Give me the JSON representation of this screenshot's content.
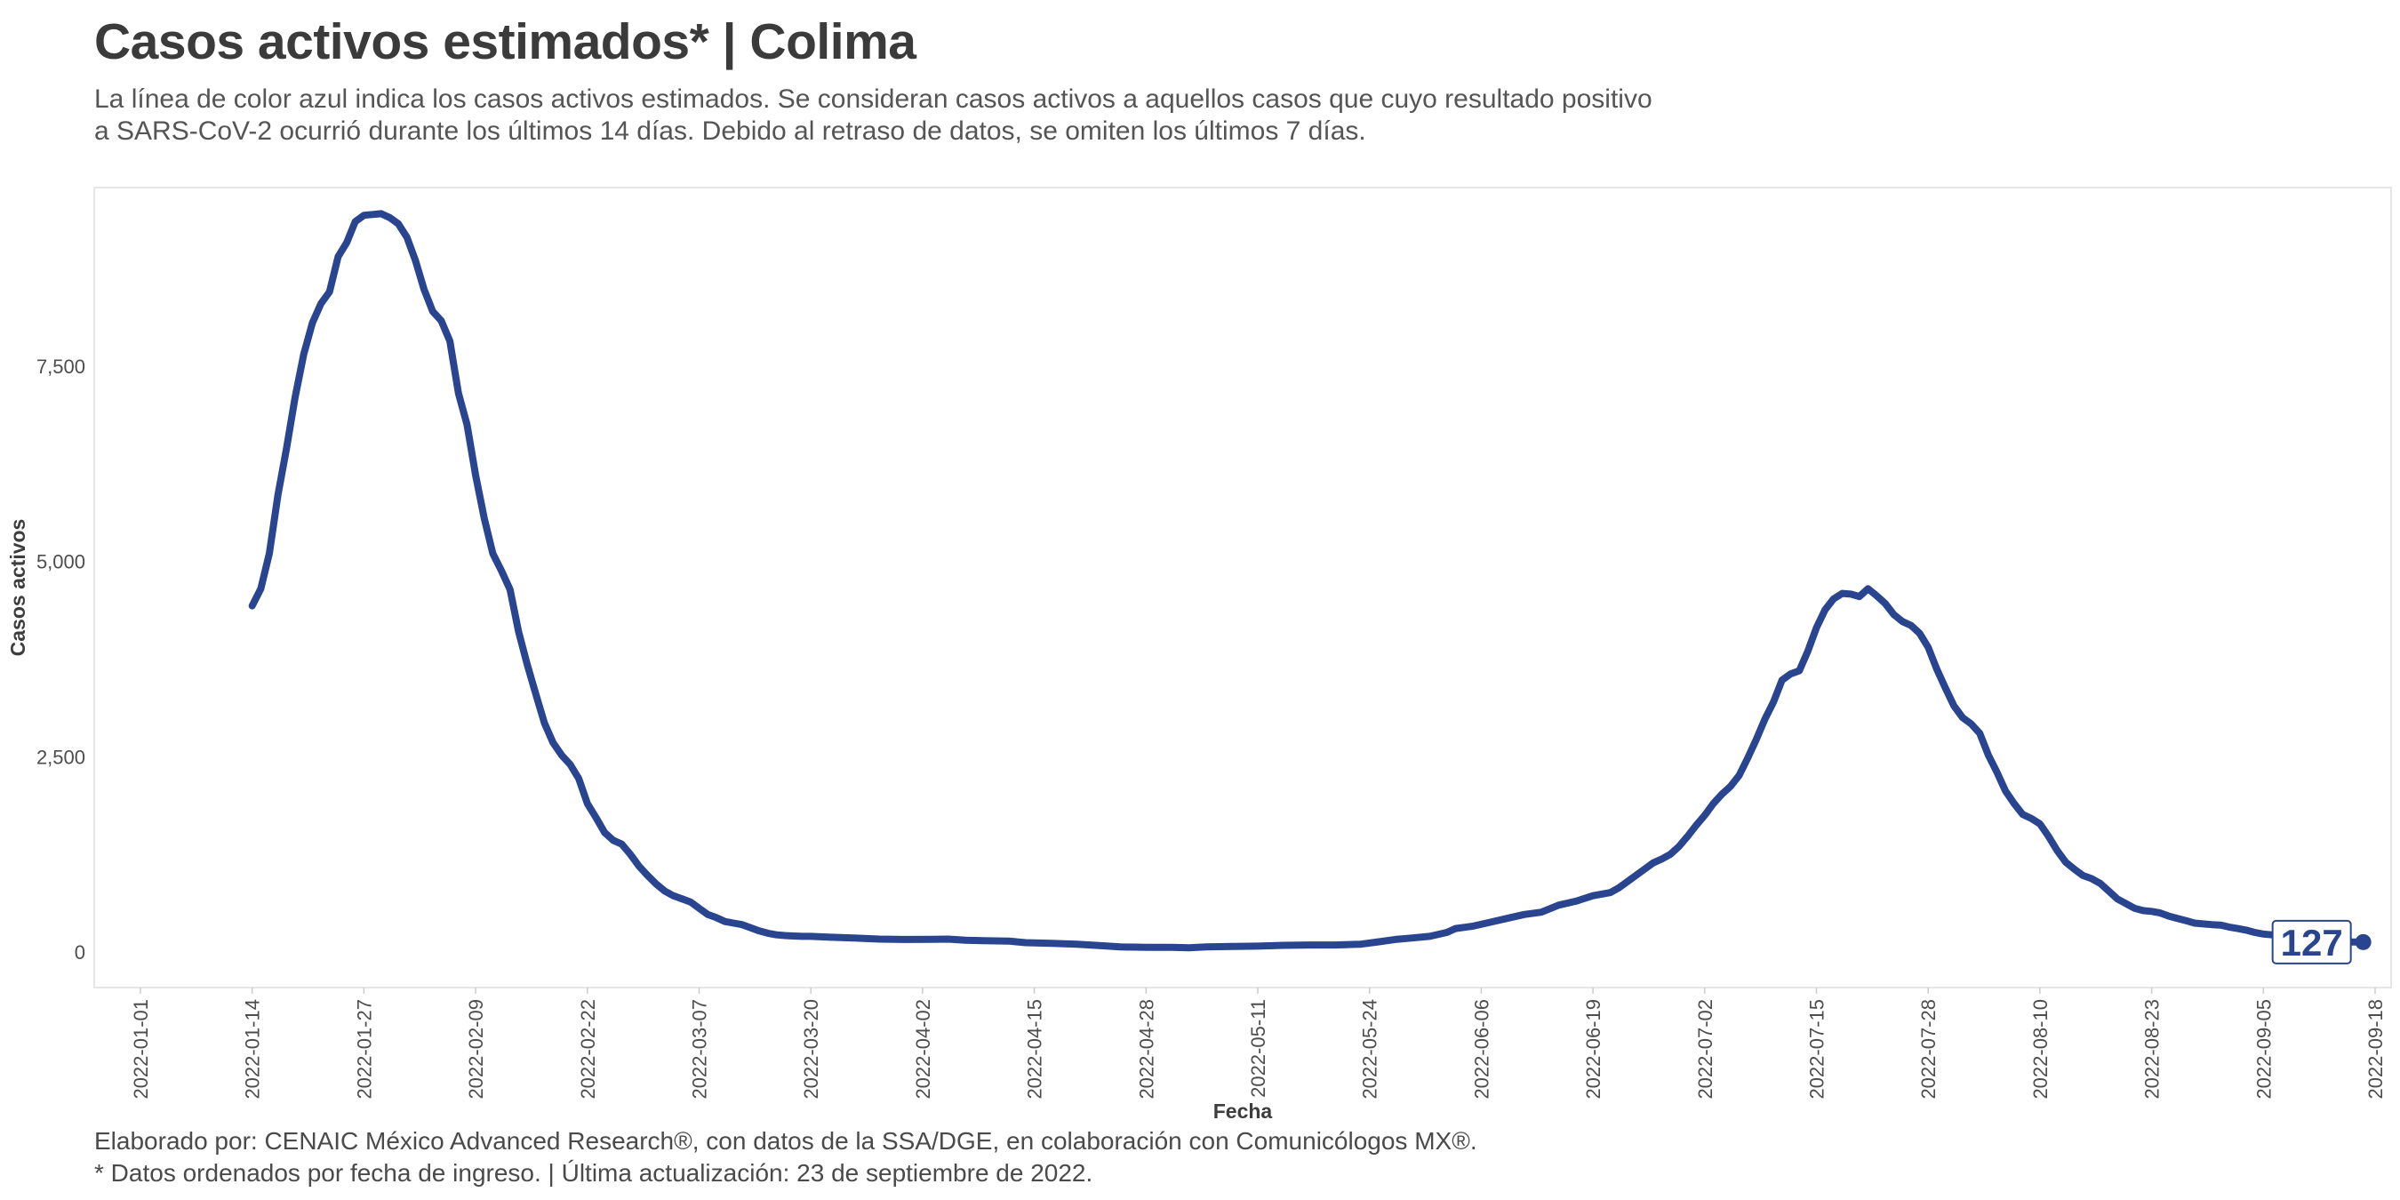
{
  "header": {
    "title": "Casos activos estimados* | Colima",
    "subtitle_line1": "La línea de color azul indica los casos activos estimados. Se consideran casos activos a aquellos casos que cuyo resultado positivo",
    "subtitle_line2": "a SARS-CoV-2 ocurrió durante los últimos 14 días. Debido al retraso de datos, se omiten los últimos 7 días."
  },
  "footer": {
    "caption_line1": "Elaborado por: CENAIC México Advanced Research®, con datos de la SSA/DGE, en colaboración con Comunicólogos MX®.",
    "caption_line2": "* Datos ordenados por fecha de ingreso. | Última actualización: 23 de septiembre de 2022."
  },
  "colors": {
    "line": "#2a4590",
    "panel_border": "#e6e6e6",
    "label_border": "#2a4590"
  },
  "chart_data": {
    "type": "line",
    "title": "Casos activos estimados* | Colima",
    "xlabel": "Fecha",
    "ylabel": "Casos activos",
    "x_range": [
      "2022-01-01",
      "2022-09-18"
    ],
    "y_range": [
      0,
      9500
    ],
    "y_ticks": [
      0,
      2500,
      5000,
      7500
    ],
    "y_tick_labels": [
      "0",
      "2,500",
      "5,000",
      "7,500"
    ],
    "x_ticks": [
      "2022-01-01",
      "2022-01-14",
      "2022-01-27",
      "2022-02-09",
      "2022-02-22",
      "2022-03-07",
      "2022-03-20",
      "2022-04-02",
      "2022-04-15",
      "2022-04-28",
      "2022-05-11",
      "2022-05-24",
      "2022-06-06",
      "2022-06-19",
      "2022-07-02",
      "2022-07-15",
      "2022-07-28",
      "2022-08-10",
      "2022-08-23",
      "2022-09-05",
      "2022-09-18"
    ],
    "grid": false,
    "legend": "none",
    "end_label": "127",
    "series": [
      {
        "points": [
          [
            "2022-01-14",
            4430
          ],
          [
            "2022-01-15",
            4650
          ],
          [
            "2022-01-16",
            5100
          ],
          [
            "2022-01-17",
            5850
          ],
          [
            "2022-01-18",
            6450
          ],
          [
            "2022-01-19",
            7100
          ],
          [
            "2022-01-20",
            7650
          ],
          [
            "2022-01-21",
            8050
          ],
          [
            "2022-01-22",
            8300
          ],
          [
            "2022-01-23",
            8450
          ],
          [
            "2022-01-24",
            8900
          ],
          [
            "2022-01-25",
            9080
          ],
          [
            "2022-01-26",
            9350
          ],
          [
            "2022-01-27",
            9430
          ],
          [
            "2022-01-28",
            9440
          ],
          [
            "2022-01-29",
            9450
          ],
          [
            "2022-01-30",
            9400
          ],
          [
            "2022-01-31",
            9320
          ],
          [
            "2022-02-01",
            9150
          ],
          [
            "2022-02-02",
            8850
          ],
          [
            "2022-02-03",
            8480
          ],
          [
            "2022-02-04",
            8200
          ],
          [
            "2022-02-05",
            8080
          ],
          [
            "2022-02-06",
            7820
          ],
          [
            "2022-02-07",
            7150
          ],
          [
            "2022-02-08",
            6750
          ],
          [
            "2022-02-09",
            6100
          ],
          [
            "2022-02-10",
            5550
          ],
          [
            "2022-02-11",
            5100
          ],
          [
            "2022-02-12",
            4880
          ],
          [
            "2022-02-13",
            4640
          ],
          [
            "2022-02-14",
            4100
          ],
          [
            "2022-02-15",
            3680
          ],
          [
            "2022-02-16",
            3300
          ],
          [
            "2022-02-17",
            2930
          ],
          [
            "2022-02-18",
            2680
          ],
          [
            "2022-02-19",
            2520
          ],
          [
            "2022-02-20",
            2400
          ],
          [
            "2022-02-21",
            2220
          ],
          [
            "2022-02-22",
            1900
          ],
          [
            "2022-02-23",
            1720
          ],
          [
            "2022-02-24",
            1530
          ],
          [
            "2022-02-25",
            1430
          ],
          [
            "2022-02-26",
            1380
          ],
          [
            "2022-02-27",
            1250
          ],
          [
            "2022-02-28",
            1100
          ],
          [
            "2022-03-01",
            980
          ],
          [
            "2022-03-02",
            870
          ],
          [
            "2022-03-03",
            780
          ],
          [
            "2022-03-04",
            720
          ],
          [
            "2022-03-05",
            680
          ],
          [
            "2022-03-06",
            640
          ],
          [
            "2022-03-07",
            560
          ],
          [
            "2022-03-08",
            480
          ],
          [
            "2022-03-09",
            440
          ],
          [
            "2022-03-10",
            390
          ],
          [
            "2022-03-11",
            370
          ],
          [
            "2022-03-12",
            350
          ],
          [
            "2022-03-13",
            310
          ],
          [
            "2022-03-14",
            270
          ],
          [
            "2022-03-15",
            240
          ],
          [
            "2022-03-16",
            220
          ],
          [
            "2022-03-17",
            210
          ],
          [
            "2022-03-18",
            205
          ],
          [
            "2022-03-19",
            200
          ],
          [
            "2022-03-20",
            200
          ],
          [
            "2022-03-22",
            190
          ],
          [
            "2022-03-25",
            180
          ],
          [
            "2022-03-28",
            165
          ],
          [
            "2022-03-31",
            160
          ],
          [
            "2022-04-03",
            162
          ],
          [
            "2022-04-05",
            165
          ],
          [
            "2022-04-07",
            150
          ],
          [
            "2022-04-09",
            145
          ],
          [
            "2022-04-12",
            140
          ],
          [
            "2022-04-14",
            120
          ],
          [
            "2022-04-17",
            110
          ],
          [
            "2022-04-20",
            100
          ],
          [
            "2022-04-23",
            80
          ],
          [
            "2022-04-25",
            65
          ],
          [
            "2022-04-28",
            60
          ],
          [
            "2022-05-01",
            60
          ],
          [
            "2022-05-03",
            55
          ],
          [
            "2022-05-05",
            65
          ],
          [
            "2022-05-08",
            70
          ],
          [
            "2022-05-11",
            75
          ],
          [
            "2022-05-14",
            85
          ],
          [
            "2022-05-17",
            90
          ],
          [
            "2022-05-20",
            90
          ],
          [
            "2022-05-23",
            100
          ],
          [
            "2022-05-25",
            130
          ],
          [
            "2022-05-27",
            160
          ],
          [
            "2022-05-29",
            180
          ],
          [
            "2022-05-31",
            200
          ],
          [
            "2022-06-02",
            250
          ],
          [
            "2022-06-03",
            300
          ],
          [
            "2022-06-05",
            330
          ],
          [
            "2022-06-07",
            380
          ],
          [
            "2022-06-09",
            430
          ],
          [
            "2022-06-11",
            480
          ],
          [
            "2022-06-13",
            510
          ],
          [
            "2022-06-15",
            600
          ],
          [
            "2022-06-17",
            650
          ],
          [
            "2022-06-19",
            720
          ],
          [
            "2022-06-21",
            760
          ],
          [
            "2022-06-22",
            820
          ],
          [
            "2022-06-23",
            900
          ],
          [
            "2022-06-24",
            980
          ],
          [
            "2022-06-25",
            1060
          ],
          [
            "2022-06-26",
            1140
          ],
          [
            "2022-06-27",
            1190
          ],
          [
            "2022-06-28",
            1250
          ],
          [
            "2022-06-29",
            1350
          ],
          [
            "2022-06-30",
            1480
          ],
          [
            "2022-07-01",
            1620
          ],
          [
            "2022-07-02",
            1750
          ],
          [
            "2022-07-03",
            1900
          ],
          [
            "2022-07-04",
            2020
          ],
          [
            "2022-07-05",
            2120
          ],
          [
            "2022-07-06",
            2260
          ],
          [
            "2022-07-07",
            2480
          ],
          [
            "2022-07-08",
            2720
          ],
          [
            "2022-07-09",
            2980
          ],
          [
            "2022-07-10",
            3200
          ],
          [
            "2022-07-11",
            3480
          ],
          [
            "2022-07-12",
            3560
          ],
          [
            "2022-07-13",
            3600
          ],
          [
            "2022-07-14",
            3850
          ],
          [
            "2022-07-15",
            4150
          ],
          [
            "2022-07-16",
            4380
          ],
          [
            "2022-07-17",
            4520
          ],
          [
            "2022-07-18",
            4590
          ],
          [
            "2022-07-19",
            4580
          ],
          [
            "2022-07-20",
            4550
          ],
          [
            "2022-07-21",
            4650
          ],
          [
            "2022-07-22",
            4560
          ],
          [
            "2022-07-23",
            4460
          ],
          [
            "2022-07-24",
            4320
          ],
          [
            "2022-07-25",
            4230
          ],
          [
            "2022-07-26",
            4180
          ],
          [
            "2022-07-27",
            4080
          ],
          [
            "2022-07-28",
            3900
          ],
          [
            "2022-07-29",
            3620
          ],
          [
            "2022-07-30",
            3380
          ],
          [
            "2022-07-31",
            3150
          ],
          [
            "2022-08-01",
            3000
          ],
          [
            "2022-08-02",
            2920
          ],
          [
            "2022-08-03",
            2800
          ],
          [
            "2022-08-04",
            2520
          ],
          [
            "2022-08-05",
            2300
          ],
          [
            "2022-08-06",
            2060
          ],
          [
            "2022-08-07",
            1900
          ],
          [
            "2022-08-08",
            1760
          ],
          [
            "2022-08-09",
            1710
          ],
          [
            "2022-08-10",
            1640
          ],
          [
            "2022-08-11",
            1480
          ],
          [
            "2022-08-12",
            1300
          ],
          [
            "2022-08-13",
            1150
          ],
          [
            "2022-08-14",
            1060
          ],
          [
            "2022-08-15",
            980
          ],
          [
            "2022-08-16",
            940
          ],
          [
            "2022-08-17",
            880
          ],
          [
            "2022-08-18",
            780
          ],
          [
            "2022-08-19",
            680
          ],
          [
            "2022-08-20",
            620
          ],
          [
            "2022-08-21",
            560
          ],
          [
            "2022-08-22",
            530
          ],
          [
            "2022-08-23",
            520
          ],
          [
            "2022-08-24",
            500
          ],
          [
            "2022-08-25",
            460
          ],
          [
            "2022-08-26",
            430
          ],
          [
            "2022-08-27",
            400
          ],
          [
            "2022-08-28",
            370
          ],
          [
            "2022-08-29",
            360
          ],
          [
            "2022-08-30",
            350
          ],
          [
            "2022-08-31",
            345
          ],
          [
            "2022-09-01",
            320
          ],
          [
            "2022-09-02",
            300
          ],
          [
            "2022-09-03",
            280
          ],
          [
            "2022-09-04",
            250
          ],
          [
            "2022-09-05",
            230
          ],
          [
            "2022-09-06",
            220
          ],
          [
            "2022-09-07",
            210
          ],
          [
            "2022-09-08",
            195
          ],
          [
            "2022-09-09",
            180
          ],
          [
            "2022-09-10",
            165
          ],
          [
            "2022-09-11",
            150
          ],
          [
            "2022-09-12",
            140
          ],
          [
            "2022-09-13",
            132
          ],
          [
            "2022-09-14",
            130
          ],
          [
            "2022-09-15",
            127
          ],
          [
            "2022-09-16",
            127
          ]
        ]
      }
    ]
  }
}
